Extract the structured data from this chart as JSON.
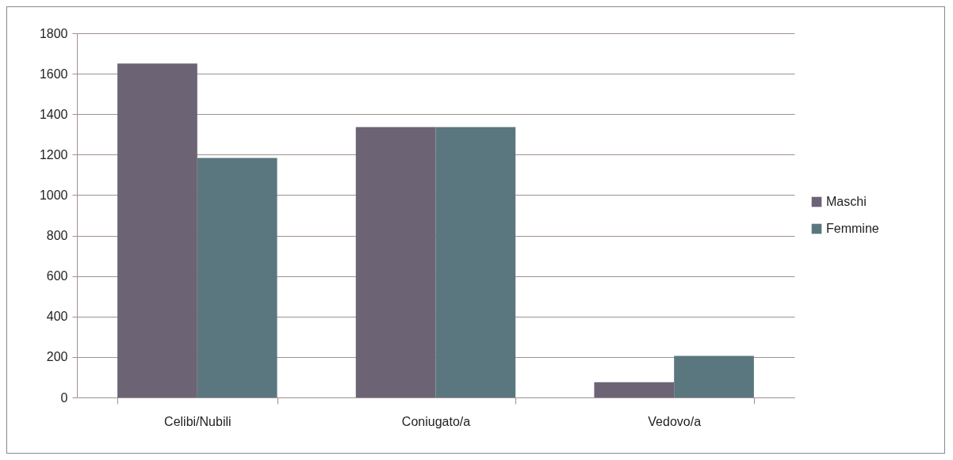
{
  "chart_data": {
    "type": "bar",
    "categories": [
      "Celibi/Nubili",
      "Coniugato/a",
      "Vedovo/a"
    ],
    "series": [
      {
        "name": "Maschi",
        "color": "#6c6375",
        "values": [
          1650,
          1336,
          75
        ]
      },
      {
        "name": "Femmine",
        "color": "#5a7780",
        "values": [
          1184,
          1336,
          205
        ]
      }
    ],
    "ylim": [
      0,
      1800
    ],
    "yticks": [
      0,
      200,
      400,
      600,
      800,
      1000,
      1200,
      1400,
      1600,
      1800
    ],
    "grid": "y",
    "legend": "right"
  }
}
